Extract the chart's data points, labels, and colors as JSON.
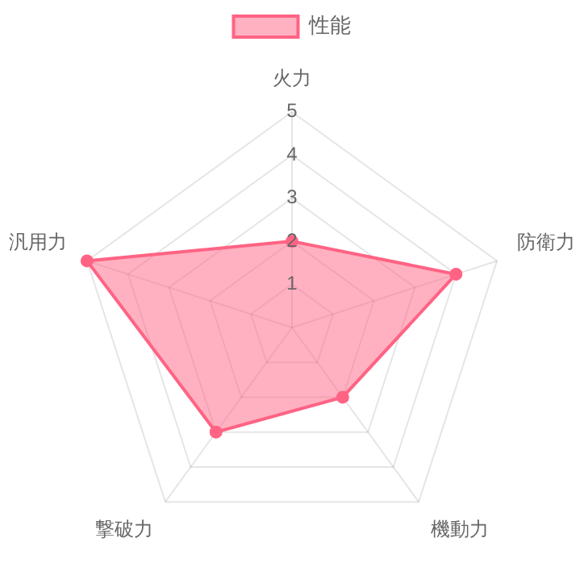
{
  "chart_data": {
    "type": "radar",
    "categories": [
      "火力",
      "防衛力",
      "機動力",
      "撃破力",
      "汎用力"
    ],
    "series": [
      {
        "name": "性能",
        "color": "#ff6384",
        "values": [
          2,
          4,
          2,
          3,
          5
        ]
      }
    ],
    "ylim": [
      0,
      5
    ],
    "yticks": [
      1,
      2,
      3,
      4,
      5
    ],
    "grid": true,
    "legend": "top",
    "marker": "circle"
  }
}
